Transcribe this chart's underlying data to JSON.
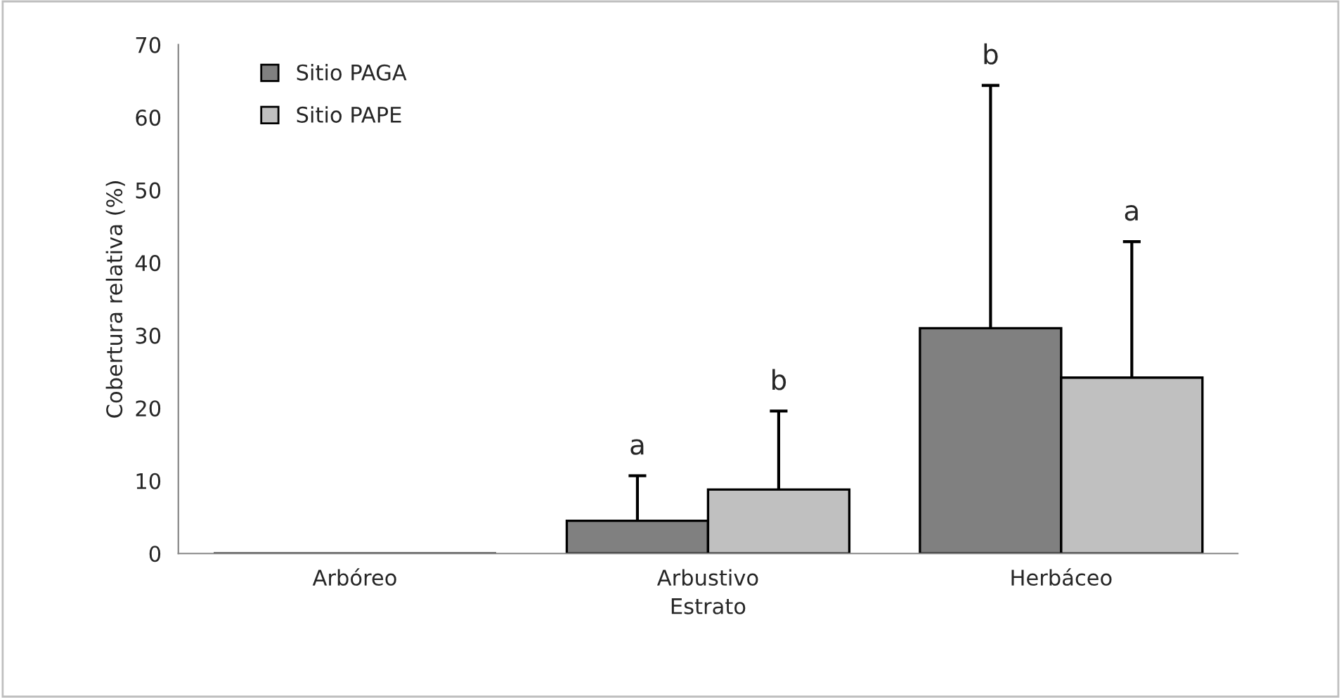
{
  "chart_data": {
    "type": "bar",
    "xlabel": "Estrato",
    "ylabel": "Cobertura relativa (%)",
    "categories": [
      "Arbóreo",
      "Arbustivo",
      "Herbáceo"
    ],
    "series": [
      {
        "name": "Sitio PAGA",
        "color": "#808080",
        "values": [
          0,
          4.5,
          31.0
        ],
        "errors": [
          null,
          [
            4.5,
            10.7
          ],
          [
            31.0,
            64.4
          ]
        ]
      },
      {
        "name": "Sitio PAPE",
        "color": "#c0c0c0",
        "values": [
          0,
          8.8,
          24.2
        ],
        "errors": [
          null,
          [
            8.8,
            19.6
          ],
          [
            24.2,
            42.9
          ]
        ]
      }
    ],
    "annotations": [
      "a",
      "b",
      "b",
      "a"
    ],
    "ylim": [
      0,
      70
    ],
    "yticks": [
      0,
      10,
      20,
      30,
      40,
      50,
      60,
      70
    ],
    "grid": false,
    "legend": "top left"
  }
}
